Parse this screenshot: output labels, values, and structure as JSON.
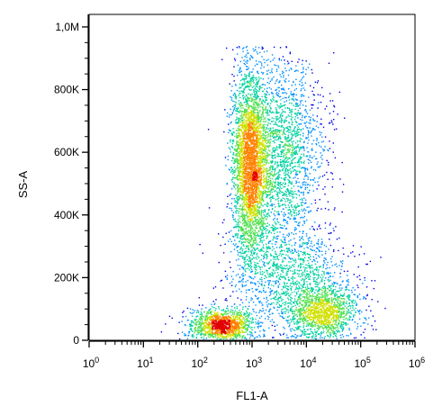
{
  "chart_data": {
    "type": "scatter",
    "title": "",
    "xlabel": "FL1-A",
    "ylabel": "SS-A",
    "x_scale": "log",
    "xlim": [
      1,
      1000000
    ],
    "ylim": [
      0,
      1050000
    ],
    "grid": false,
    "legend": "none",
    "x_ticks": [
      {
        "value": 1,
        "base": "10",
        "exp": "0"
      },
      {
        "value": 10,
        "base": "10",
        "exp": "1"
      },
      {
        "value": 100,
        "base": "10",
        "exp": "2"
      },
      {
        "value": 1000,
        "base": "10",
        "exp": "3"
      },
      {
        "value": 10000,
        "base": "10",
        "exp": "4"
      },
      {
        "value": 100000,
        "base": "10",
        "exp": "5"
      },
      {
        "value": 1000000,
        "base": "10",
        "exp": "6"
      }
    ],
    "y_ticks": [
      {
        "value": 0,
        "label": "0"
      },
      {
        "value": 200000,
        "label": "200K"
      },
      {
        "value": 400000,
        "label": "400K"
      },
      {
        "value": 600000,
        "label": "600K"
      },
      {
        "value": 800000,
        "label": "800K"
      },
      {
        "value": 1000000,
        "label": "1,0M"
      }
    ],
    "populations": [
      {
        "x_center": 280,
        "x_spread_decades": 0.28,
        "y_center": 50000,
        "y_spread": 25000,
        "count": 1300,
        "peak_density": "high"
      },
      {
        "x_center": 900,
        "x_spread_decades": 0.16,
        "y_center": 560000,
        "y_spread": 150000,
        "count": 3200,
        "peak_density": "medium"
      },
      {
        "x_center": 3500,
        "x_spread_decades": 0.38,
        "y_center": 600000,
        "y_spread": 150000,
        "count": 2000,
        "peak_density": "low"
      },
      {
        "x_center": 20000,
        "x_spread_decades": 0.32,
        "y_center": 90000,
        "y_spread": 40000,
        "count": 1200,
        "peak_density": "medium"
      },
      {
        "x_center": 5000,
        "x_spread_decades": 0.55,
        "y_center": 200000,
        "y_spread": 90000,
        "count": 1300,
        "peak_density": "low"
      }
    ],
    "colormap": [
      "#0000e6",
      "#0090ff",
      "#00d0a0",
      "#50e050",
      "#d0e000",
      "#ff8000",
      "#e00000"
    ]
  }
}
